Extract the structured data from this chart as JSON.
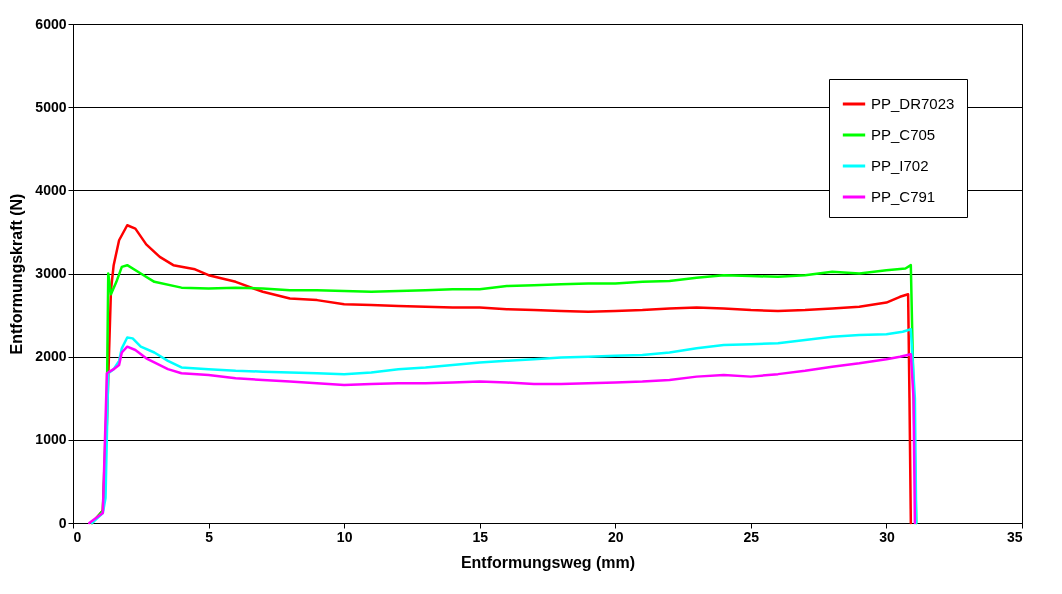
{
  "chart_data": {
    "type": "line",
    "xlabel": "Entformungsweg (mm)",
    "ylabel": "Entformungskraft (N)",
    "xlim": [
      0,
      35
    ],
    "xticks": [
      0,
      5,
      10,
      15,
      20,
      25,
      30,
      35
    ],
    "ylim": [
      0,
      6000
    ],
    "yticks": [
      0,
      1000,
      2000,
      3000,
      4000,
      5000,
      6000
    ],
    "grid": "y",
    "legend": "top right",
    "marker": "none",
    "line_style": "solid",
    "series": [
      {
        "name": "PP_DR7023",
        "color": "#ff0000",
        "x": [
          0.7,
          1.1,
          1.25,
          1.4,
          1.5,
          1.7,
          2.0,
          2.3,
          2.7,
          3.2,
          3.7,
          4.5,
          5,
          6,
          7,
          8,
          9,
          10,
          11,
          12,
          13,
          14,
          15,
          16,
          17,
          18,
          19,
          20,
          21,
          22,
          23,
          24,
          25,
          26,
          27,
          28,
          29,
          30,
          30.5,
          30.8,
          30.85,
          30.9
        ],
        "values": [
          0,
          150,
          1200,
          2800,
          3100,
          3400,
          3580,
          3540,
          3350,
          3200,
          3100,
          3050,
          2980,
          2900,
          2780,
          2700,
          2680,
          2630,
          2620,
          2610,
          2600,
          2590,
          2590,
          2570,
          2560,
          2550,
          2540,
          2550,
          2560,
          2580,
          2590,
          2580,
          2560,
          2550,
          2560,
          2580,
          2600,
          2650,
          2720,
          2750,
          1500,
          0
        ]
      },
      {
        "name": "PP_C705",
        "color": "#00ff00",
        "x": [
          0.7,
          1.1,
          1.25,
          1.3,
          1.4,
          1.6,
          1.8,
          2.0,
          2.5,
          3,
          4,
          5,
          6,
          7,
          8,
          9,
          10,
          11,
          12,
          13,
          14,
          15,
          16,
          17,
          18,
          19,
          20,
          21,
          22,
          23,
          24,
          25,
          26,
          27,
          28,
          29,
          30,
          30.7,
          30.9,
          31.1
        ],
        "values": [
          0,
          150,
          1500,
          3000,
          2750,
          2900,
          3080,
          3100,
          3000,
          2900,
          2830,
          2820,
          2830,
          2820,
          2800,
          2800,
          2790,
          2780,
          2790,
          2800,
          2810,
          2810,
          2850,
          2860,
          2870,
          2880,
          2880,
          2900,
          2910,
          2950,
          2980,
          2970,
          2960,
          2980,
          3020,
          3000,
          3040,
          3060,
          3100,
          0
        ]
      },
      {
        "name": "PP_I702",
        "color": "#00ffff",
        "x": [
          0.7,
          1.1,
          1.2,
          1.3,
          1.5,
          1.7,
          1.8,
          2.0,
          2.2,
          2.5,
          3,
          3.5,
          4,
          5,
          6,
          7,
          8,
          9,
          10,
          11,
          12,
          13,
          14,
          15,
          16,
          17,
          18,
          19,
          20,
          21,
          22,
          23,
          24,
          25,
          26,
          27,
          28,
          29,
          30,
          30.6,
          30.9,
          31.05,
          31.1
        ],
        "values": [
          0,
          120,
          300,
          1800,
          1850,
          1950,
          2100,
          2230,
          2220,
          2120,
          2050,
          1950,
          1870,
          1850,
          1830,
          1820,
          1810,
          1800,
          1790,
          1810,
          1850,
          1870,
          1900,
          1930,
          1950,
          1970,
          1990,
          2000,
          2010,
          2020,
          2050,
          2100,
          2140,
          2150,
          2160,
          2200,
          2240,
          2260,
          2270,
          2300,
          2330,
          1500,
          0
        ]
      },
      {
        "name": "PP_C791",
        "color": "#ff00ff",
        "x": [
          0.6,
          1.1,
          1.25,
          1.5,
          1.7,
          1.8,
          2.0,
          2.3,
          2.7,
          3.5,
          4,
          5,
          6,
          7,
          8,
          9,
          10,
          11,
          12,
          13,
          14,
          15,
          16,
          17,
          18,
          19,
          20,
          21,
          22,
          23,
          24,
          25,
          26,
          27,
          28,
          29,
          30,
          30.5,
          30.9,
          31.0,
          31.05
        ],
        "values": [
          0,
          120,
          1800,
          1850,
          1900,
          2050,
          2120,
          2080,
          1980,
          1850,
          1800,
          1780,
          1740,
          1720,
          1700,
          1680,
          1660,
          1670,
          1680,
          1680,
          1690,
          1700,
          1690,
          1670,
          1670,
          1680,
          1690,
          1700,
          1720,
          1760,
          1780,
          1760,
          1790,
          1830,
          1880,
          1920,
          1970,
          2000,
          2030,
          1500,
          0
        ]
      }
    ]
  }
}
